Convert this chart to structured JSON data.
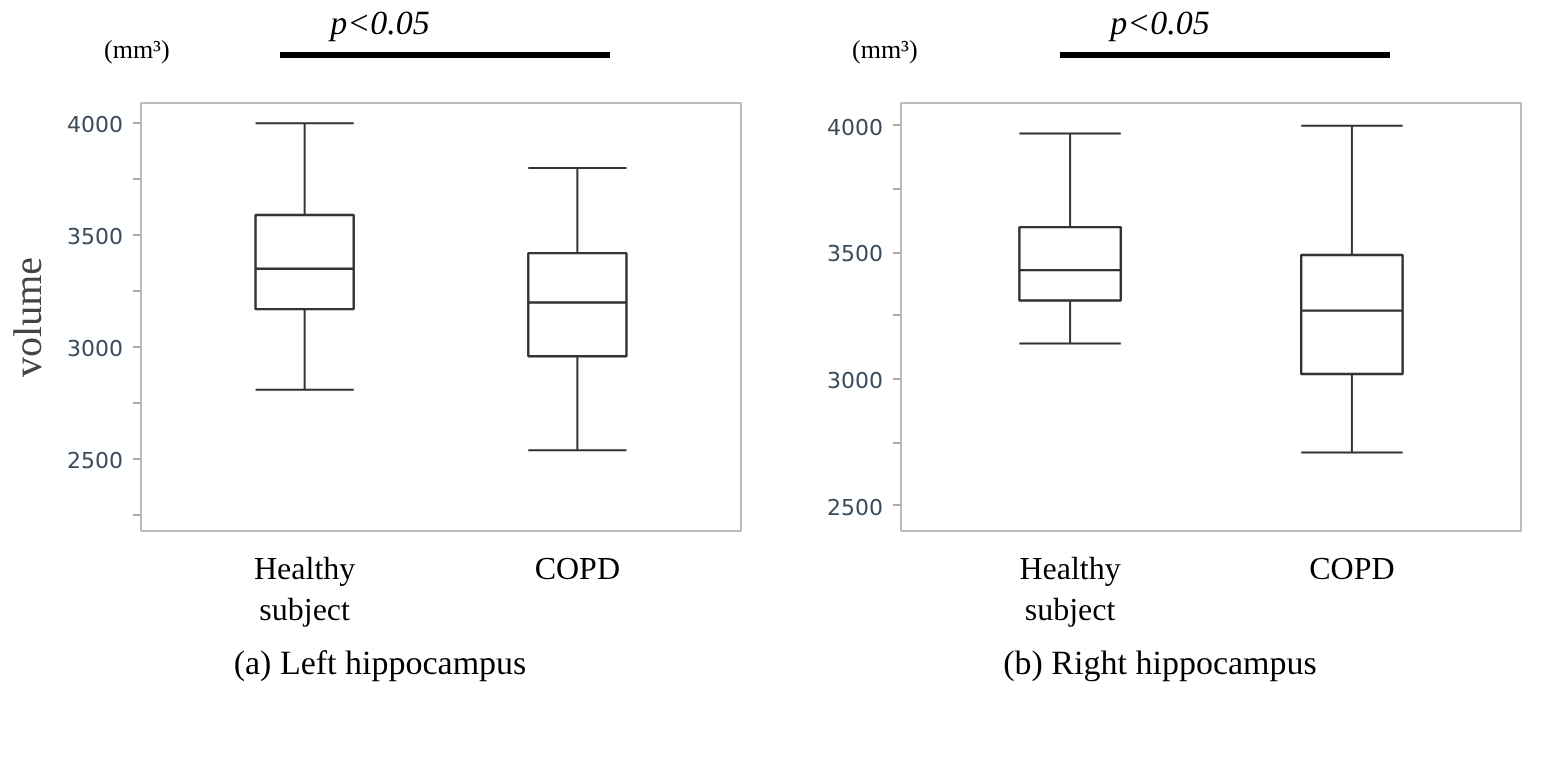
{
  "chart_data": [
    {
      "type": "box",
      "title": "(a) Left hippocampus",
      "ylabel": "volume",
      "categories": [
        "Healthy subject",
        "COPD"
      ],
      "boxes": [
        {
          "low": 2810,
          "q1": 3170,
          "median": 3350,
          "q3": 3590,
          "high": 4000
        },
        {
          "low": 2540,
          "q1": 2960,
          "median": 3200,
          "q3": 3420,
          "high": 3800
        }
      ],
      "ylim": [
        2180,
        4090
      ],
      "yticks": [
        {
          "value": 2250,
          "label": null
        },
        2500,
        {
          "value": 2750,
          "label": null
        },
        3000,
        {
          "value": 3250,
          "label": null
        },
        3500,
        {
          "value": 3750,
          "label": null
        },
        4000
      ],
      "grid": false,
      "annotations": [
        "(mm³)",
        "p<0.05"
      ]
    },
    {
      "type": "box",
      "title": "(b) Right hippocampus",
      "categories": [
        "Healthy subject",
        "COPD"
      ],
      "boxes": [
        {
          "low": 3140,
          "q1": 3310,
          "median": 3430,
          "q3": 3600,
          "high": 3970
        },
        {
          "low": 2710,
          "q1": 3020,
          "median": 3270,
          "q3": 3490,
          "high": 4000
        }
      ],
      "ylim": [
        2400,
        4090
      ],
      "yticks": [
        2500,
        {
          "value": 2750,
          "label": null
        },
        3000,
        {
          "value": 3250,
          "label": null
        },
        3500,
        {
          "value": 3750,
          "label": null
        },
        4000
      ],
      "grid": false,
      "annotations": [
        "(mm³)",
        "p<0.05"
      ]
    }
  ]
}
